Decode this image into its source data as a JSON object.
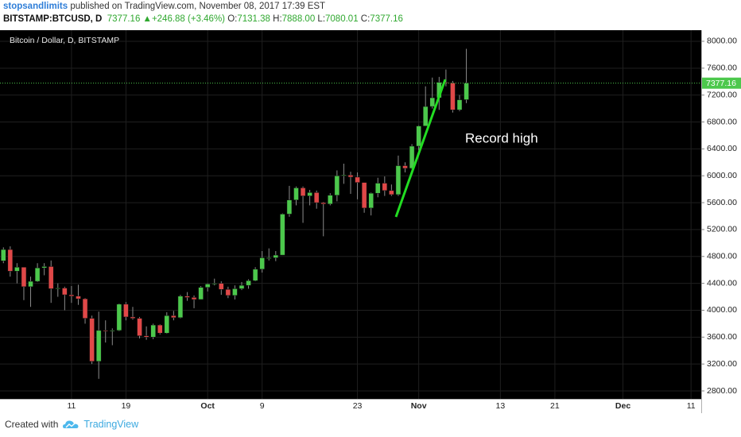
{
  "header": {
    "user": "stopsandlimits",
    "note": "published on TradingView.com, November 08, 2017 17:39 EST",
    "symbol": "BITSTAMP:BTCUSD, D",
    "last": "7377.16",
    "change_arrow": "▲",
    "change": "+246.88 (+3.46%)",
    "ohlc": [
      {
        "label": "O:",
        "value": "7131.38"
      },
      {
        "label": "H:",
        "value": "7888.00"
      },
      {
        "label": "L:",
        "value": "7080.01"
      },
      {
        "label": "C:",
        "value": "7377.16"
      }
    ]
  },
  "footer": {
    "created": "Created with",
    "brand": "TradingView"
  },
  "chart_data": {
    "type": "candlestick",
    "title": "Bitcoin / Dollar, D, BITSTAMP",
    "annotation": "Record high",
    "up_color": "#4cc84c",
    "down_color": "#e04848",
    "wick_color": "#8c8c8c",
    "grid": true,
    "categories": [
      null,
      null,
      null,
      null,
      null,
      null,
      null,
      null,
      null,
      null,
      "11",
      null,
      null,
      null,
      null,
      null,
      null,
      null,
      "19",
      null,
      null,
      null,
      null,
      null,
      null,
      null,
      null,
      null,
      null,
      null,
      "Oct",
      null,
      null,
      null,
      null,
      null,
      null,
      null,
      "9",
      null,
      null,
      null,
      null,
      null,
      null,
      null,
      null,
      null,
      null,
      null,
      null,
      null,
      "23",
      null,
      null,
      null,
      null,
      null,
      null,
      null,
      null,
      "Nov",
      null,
      null,
      null,
      null,
      null,
      null,
      null,
      null,
      null,
      null,
      null,
      "13",
      null,
      null,
      null,
      null,
      null,
      null,
      null,
      "21",
      null,
      null,
      null,
      null,
      null,
      null,
      null,
      null,
      null,
      "Dec",
      null,
      null,
      null,
      null,
      null,
      null,
      null,
      null,
      null,
      "11",
      null
    ],
    "open": [
      4735,
      4903,
      4580,
      4640,
      4350,
      4430,
      4630,
      4650,
      4320,
      4330,
      4230,
      4210,
      4170,
      3880,
      3240,
      3700,
      3690,
      3700,
      4090,
      3900,
      3880,
      3620,
      3600,
      3780,
      3660,
      3920,
      3890,
      4210,
      4190,
      4160,
      4340,
      4390,
      4400,
      4310,
      4220,
      4320,
      4370,
      4440,
      4610,
      4780,
      4780,
      4820,
      5430,
      5640,
      5820,
      5700,
      5750,
      5600,
      5580,
      5710,
      6000,
      6010,
      5980,
      5900,
      5520,
      5740,
      5890,
      5780,
      5720,
      6150,
      6110,
      6440,
      6740,
      7030,
      7160,
      7390,
      7380,
      6980,
      7131.38,
      null,
      null,
      null,
      null,
      null,
      null,
      null,
      null,
      null,
      null,
      null,
      null,
      null,
      null,
      null,
      null,
      null,
      null,
      null,
      null,
      null,
      null,
      null,
      null,
      null,
      null,
      null,
      null,
      null,
      null,
      null,
      null,
      null,
      null
    ],
    "high": [
      4935,
      4950,
      4700,
      4640,
      4500,
      4700,
      4700,
      4740,
      4400,
      4350,
      4360,
      4380,
      4180,
      3920,
      3980,
      3850,
      3730,
      4100,
      4120,
      4050,
      3900,
      3760,
      3800,
      3790,
      3970,
      3990,
      4230,
      4270,
      4220,
      4360,
      4400,
      4470,
      4430,
      4350,
      4370,
      4420,
      4460,
      4640,
      4880,
      4920,
      4880,
      5440,
      5850,
      5840,
      5840,
      5790,
      5780,
      5610,
      5740,
      6080,
      6180,
      6060,
      6050,
      5900,
      5750,
      5970,
      5990,
      5870,
      6300,
      6200,
      6470,
      6750,
      7330,
      7460,
      7470,
      7580,
      7410,
      7200,
      7888,
      null,
      null,
      null,
      null,
      null,
      null,
      null,
      null,
      null,
      null,
      null,
      null,
      null,
      null,
      null,
      null,
      null,
      null,
      null,
      null,
      null,
      null,
      null,
      null,
      null,
      null,
      null,
      null,
      null,
      null,
      null,
      null,
      null,
      null
    ],
    "low": [
      4700,
      4500,
      4400,
      4150,
      4050,
      4420,
      4520,
      4110,
      4200,
      4000,
      4110,
      4080,
      3800,
      3200,
      2980,
      3520,
      3480,
      3690,
      3850,
      3860,
      3580,
      3560,
      3570,
      3640,
      3650,
      3850,
      3880,
      4140,
      4030,
      4160,
      4280,
      4370,
      4230,
      4180,
      4160,
      4300,
      4320,
      4430,
      4560,
      4740,
      4730,
      4820,
      5390,
      5560,
      5300,
      5560,
      5510,
      5100,
      5560,
      5620,
      5880,
      5730,
      5650,
      5450,
      5410,
      5680,
      5700,
      5700,
      5700,
      6050,
      6100,
      6380,
      6740,
      7000,
      6980,
      7330,
      6940,
      6960,
      7080.01,
      null,
      null,
      null,
      null,
      null,
      null,
      null,
      null,
      null,
      null,
      null,
      null,
      null,
      null,
      null,
      null,
      null,
      null,
      null,
      null,
      null,
      null,
      null,
      null,
      null,
      null,
      null,
      null,
      null,
      null,
      null,
      null,
      null,
      null
    ],
    "close": [
      4903,
      4580,
      4640,
      4350,
      4430,
      4630,
      4650,
      4320,
      4330,
      4230,
      4210,
      4170,
      3880,
      3240,
      3700,
      3690,
      3700,
      4090,
      3900,
      3880,
      3620,
      3600,
      3780,
      3660,
      3920,
      3890,
      4210,
      4190,
      4160,
      4340,
      4390,
      4400,
      4310,
      4220,
      4320,
      4370,
      4440,
      4610,
      4780,
      4780,
      4820,
      5430,
      5640,
      5820,
      5700,
      5750,
      5600,
      5580,
      5710,
      6000,
      6010,
      5980,
      5900,
      5520,
      5740,
      5890,
      5780,
      5720,
      6150,
      6110,
      6440,
      6740,
      7030,
      7160,
      7390,
      7380,
      6980,
      7130,
      7377.16,
      null,
      null,
      null,
      null,
      null,
      null,
      null,
      null,
      null,
      null,
      null,
      null,
      null,
      null,
      null,
      null,
      null,
      null,
      null,
      null,
      null,
      null,
      null,
      null,
      null,
      null,
      null,
      null,
      null,
      null,
      null,
      null,
      null,
      null
    ],
    "ylim": [
      2682,
      8165
    ],
    "yticks": [
      {
        "value": 2800,
        "label": "2800.00"
      },
      {
        "value": 3200,
        "label": "3200.00"
      },
      {
        "value": 3600,
        "label": "3600.00"
      },
      {
        "value": 4000,
        "label": "4000.00"
      },
      {
        "value": 4400,
        "label": "4400.00"
      },
      {
        "value": 4800,
        "label": "4800.00"
      },
      {
        "value": 5200,
        "label": "5200.00"
      },
      {
        "value": 5600,
        "label": "5600.00"
      },
      {
        "value": 6000,
        "label": "6000.00"
      },
      {
        "value": 6400,
        "label": "6400.00"
      },
      {
        "value": 6800,
        "label": "6800.00"
      },
      {
        "value": 7200,
        "label": "7200.00"
      },
      {
        "value": 7600,
        "label": "7600.00"
      },
      {
        "value": 8000,
        "label": "8000.00"
      }
    ]
  }
}
